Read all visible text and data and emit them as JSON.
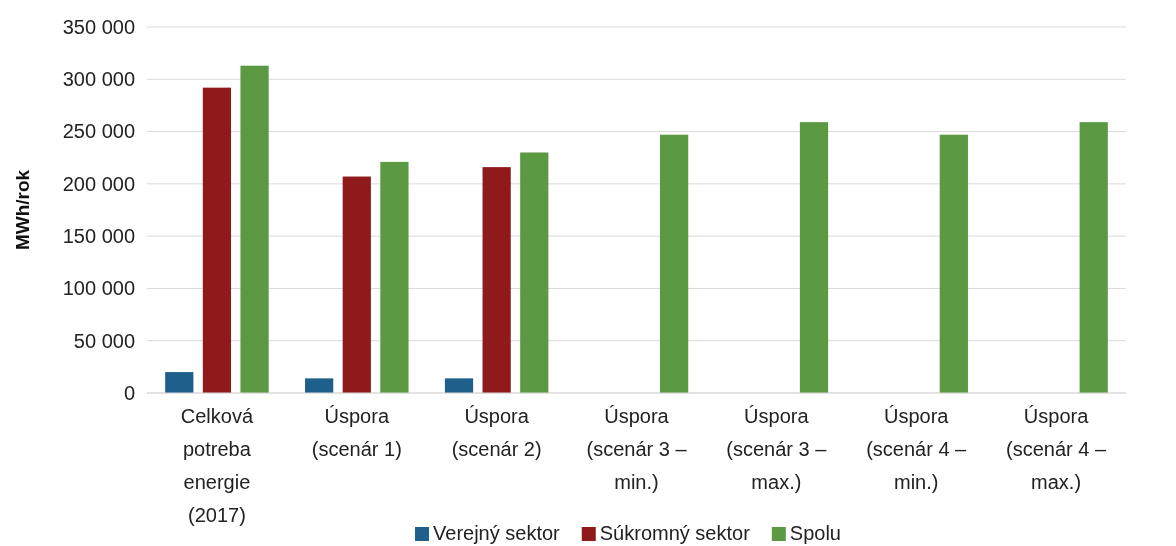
{
  "chart_data": {
    "type": "bar",
    "ylabel": "MWh/rok",
    "categories": [
      "Celková potreba energie (2017)",
      "Úspora (scenár 1)",
      "Úspora (scenár 2)",
      "Úspora (scenár 3 – min.)",
      "Úspora (scenár 3 – max.)",
      "Úspora (scenár 4 – min.)",
      "Úspora (scenár 4 – max.)"
    ],
    "series": [
      {
        "name": "Verejný sektor",
        "color": "#1f5f8b",
        "values": [
          20000,
          14000,
          14000,
          null,
          null,
          null,
          null
        ]
      },
      {
        "name": "Súkromný sektor",
        "color": "#8e1a1c",
        "values": [
          292000,
          207000,
          216000,
          null,
          null,
          null,
          null
        ]
      },
      {
        "name": "Spolu",
        "color": "#5b9942",
        "values": [
          313000,
          221000,
          230000,
          247000,
          259000,
          247000,
          259000
        ]
      }
    ],
    "ylim": [
      0,
      350000
    ],
    "yticks": [
      0,
      {
        "value": 50000,
        "label": "50 000"
      },
      {
        "value": 100000,
        "label": "100 000"
      },
      {
        "value": 150000,
        "label": "150 000"
      },
      {
        "value": 200000,
        "label": "200 000"
      },
      {
        "value": 250000,
        "label": "250 000"
      },
      {
        "value": 300000,
        "label": "300 000"
      },
      {
        "value": 350000,
        "label": "350 000"
      }
    ],
    "grid": "y",
    "legend": "bottom"
  }
}
